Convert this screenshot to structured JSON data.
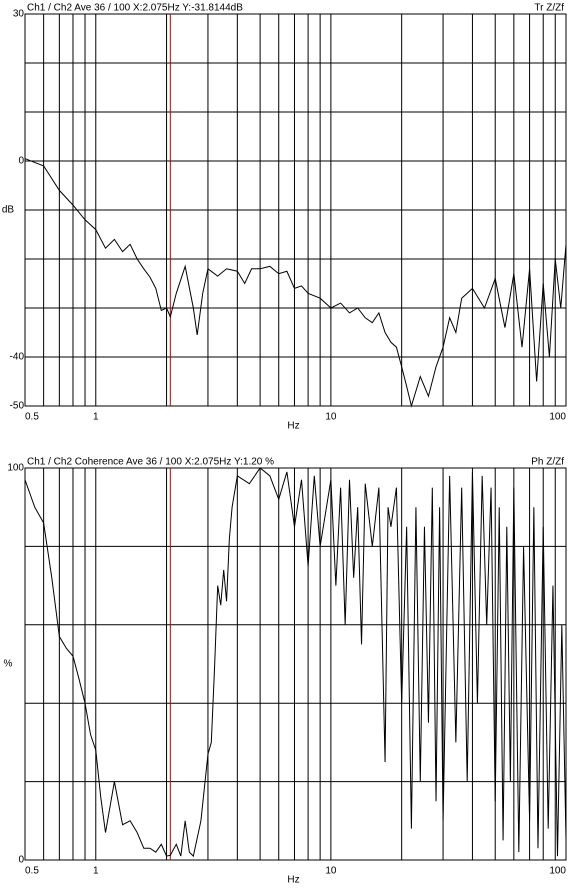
{
  "chart_data": [
    {
      "type": "line",
      "header": "Ch1 / Ch2  Ave 36 / 100  X:2.075Hz  Y:-31.8144dB",
      "header_right": "Tr Z/Zf",
      "x_label": "Hz",
      "y_label": "dB",
      "log_x": true,
      "xlim": [
        0.5,
        100
      ],
      "xticks": [
        0.5,
        1,
        10,
        100
      ],
      "xgrid": [
        0.5,
        0.6,
        0.7,
        0.8,
        0.9,
        1,
        2,
        3,
        4,
        5,
        6,
        7,
        8,
        9,
        10,
        20,
        30,
        40,
        50,
        60,
        70,
        80,
        90,
        100
      ],
      "ylim": [
        -50,
        30
      ],
      "yticks": [
        30,
        0,
        -40,
        -50
      ],
      "ygrid": [
        30,
        20,
        10,
        0,
        -10,
        -20,
        -30,
        -40,
        -50
      ],
      "cursor_x": 2.075,
      "cursor_color": "#c00000",
      "series": [
        {
          "color": "#000000",
          "x": [
            0.5,
            0.55,
            0.6,
            0.7,
            0.8,
            0.9,
            1.0,
            1.1,
            1.2,
            1.3,
            1.4,
            1.5,
            1.6,
            1.7,
            1.8,
            1.9,
            2.0,
            2.075,
            2.2,
            2.4,
            2.6,
            2.7,
            2.85,
            3.0,
            3.3,
            3.6,
            4.0,
            4.3,
            4.6,
            5.0,
            5.5,
            6.0,
            6.5,
            7.0,
            7.5,
            8,
            9,
            10,
            11,
            12,
            13,
            14,
            15,
            16,
            17,
            18,
            19,
            20,
            21,
            22,
            24,
            26,
            28,
            30,
            32,
            34,
            36,
            38,
            40,
            45,
            50,
            55,
            60,
            65,
            70,
            75,
            80,
            85,
            90,
            95,
            100
          ],
          "values": [
            0.5,
            -0.3,
            -1,
            -6,
            -9,
            -12,
            -14,
            -17.8,
            -16,
            -18.5,
            -17,
            -20,
            -22,
            -23.7,
            -26,
            -30.5,
            -30,
            -31.8,
            -27,
            -21.5,
            -30,
            -35.5,
            -27,
            -22,
            -23.5,
            -22,
            -22.5,
            -25,
            -22,
            -22,
            -21.5,
            -23,
            -22.5,
            -26,
            -25.5,
            -27,
            -28,
            -30,
            -29,
            -31,
            -30,
            -32,
            -33,
            -31,
            -35,
            -37,
            -38,
            -42,
            -46,
            -50,
            -44,
            -48,
            -42,
            -38,
            -32,
            -35,
            -28,
            -27,
            -26,
            -30,
            -24,
            -34,
            -23,
            -38,
            -22,
            -45,
            -25,
            -40,
            -20,
            -30,
            -17
          ]
        }
      ]
    },
    {
      "type": "line",
      "header": "Ch1 / Ch2  Coherence Ave 36 / 100  X:2.075Hz  Y:1.20 %",
      "header_right": "Ph Z/Zf",
      "x_label": "Hz",
      "y_label": "%",
      "log_x": true,
      "xlim": [
        0.5,
        100
      ],
      "xticks": [
        0.5,
        1,
        10,
        100
      ],
      "xgrid": [
        0.5,
        0.6,
        0.7,
        0.8,
        0.9,
        1,
        2,
        3,
        4,
        5,
        6,
        7,
        8,
        9,
        10,
        20,
        30,
        40,
        50,
        60,
        70,
        80,
        90,
        100
      ],
      "ylim": [
        0,
        100
      ],
      "yticks": [
        100,
        0
      ],
      "ygrid": [
        100,
        80,
        60,
        40,
        20,
        0
      ],
      "cursor_x": 2.075,
      "cursor_color": "#c00000",
      "series": [
        {
          "color": "#000000",
          "x": [
            0.5,
            0.55,
            0.6,
            0.65,
            0.7,
            0.75,
            0.8,
            0.85,
            0.9,
            0.95,
            1.0,
            1.05,
            1.1,
            1.2,
            1.3,
            1.4,
            1.5,
            1.6,
            1.7,
            1.8,
            1.9,
            2.0,
            2.075,
            2.2,
            2.3,
            2.4,
            2.5,
            2.6,
            2.8,
            3.0,
            3.1,
            3.2,
            3.3,
            3.4,
            3.5,
            3.6,
            3.7,
            3.8,
            4.0,
            4.5,
            5.0,
            5.5,
            6,
            6.5,
            7,
            7.5,
            8,
            8.5,
            9,
            10,
            10.5,
            11,
            11.5,
            12,
            12.5,
            13,
            13.5,
            14,
            15,
            16,
            17,
            17.5,
            18,
            19,
            20,
            21,
            22,
            23,
            24,
            25,
            26,
            27,
            28,
            29,
            30,
            32,
            34,
            36,
            38,
            40,
            42,
            44,
            46,
            48,
            50,
            52,
            54,
            56,
            58,
            60,
            63,
            66,
            70,
            73,
            76,
            80,
            84,
            88,
            92,
            96,
            100
          ],
          "values": [
            97,
            90,
            86,
            72,
            57,
            54,
            52,
            46,
            40,
            32,
            28,
            16,
            7,
            20,
            9,
            10,
            7,
            3,
            3,
            2,
            4,
            1,
            1.2,
            4,
            1,
            10,
            2,
            1,
            10,
            27,
            30,
            49,
            70,
            65,
            74,
            66,
            82,
            90,
            98,
            96,
            100,
            98,
            92,
            99,
            85,
            97,
            75,
            98,
            80,
            97,
            70,
            95,
            60,
            97,
            72,
            90,
            55,
            96,
            80,
            95,
            25,
            90,
            85,
            95,
            40,
            85,
            8,
            90,
            20,
            85,
            35,
            95,
            15,
            90,
            10,
            98,
            30,
            95,
            20,
            99,
            40,
            98,
            60,
            95,
            15,
            90,
            5,
            85,
            20,
            95,
            2,
            80,
            10,
            90,
            3,
            85,
            8,
            70,
            1,
            60,
            5
          ]
        }
      ]
    }
  ]
}
